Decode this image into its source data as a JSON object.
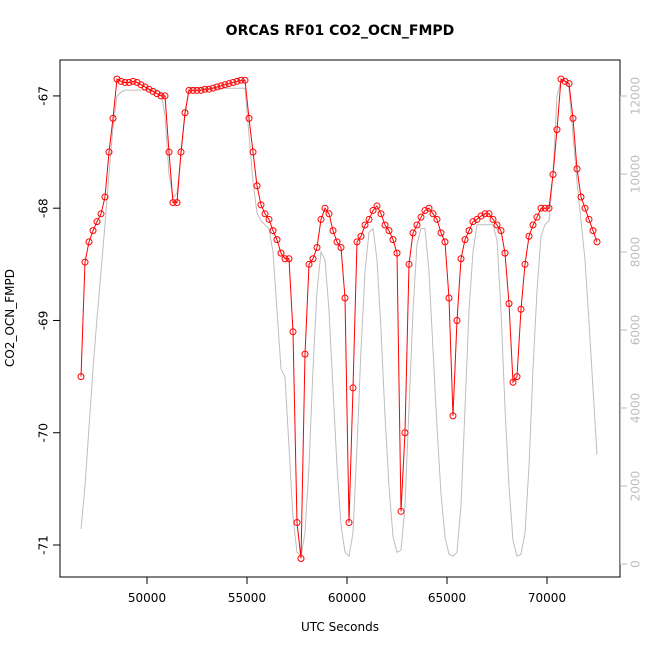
{
  "chart_data": {
    "type": "line",
    "title": "ORCAS RF01 CO2_OCN_FMPD",
    "xlabel": "UTC Seconds",
    "ylabel": "CO2_OCN_FMPD",
    "x": [
      46700,
      46900,
      47100,
      47300,
      47500,
      47700,
      47900,
      48100,
      48300,
      48500,
      48700,
      48900,
      49100,
      49300,
      49500,
      49700,
      49900,
      50100,
      50300,
      50500,
      50700,
      50900,
      51100,
      51300,
      51500,
      51700,
      51900,
      52100,
      52300,
      52500,
      52700,
      52900,
      53100,
      53300,
      53500,
      53700,
      53900,
      54100,
      54300,
      54500,
      54700,
      54900,
      55100,
      55300,
      55500,
      55700,
      55900,
      56100,
      56300,
      56500,
      56700,
      56900,
      57100,
      57300,
      57500,
      57700,
      57900,
      58100,
      58300,
      58500,
      58700,
      58900,
      59100,
      59300,
      59500,
      59700,
      59900,
      60100,
      60300,
      60500,
      60700,
      60900,
      61100,
      61300,
      61500,
      61700,
      61900,
      62100,
      62300,
      62500,
      62700,
      62900,
      63100,
      63300,
      63500,
      63700,
      63900,
      64100,
      64300,
      64500,
      64700,
      64900,
      65100,
      65300,
      65500,
      65700,
      65900,
      66100,
      66300,
      66500,
      66700,
      66900,
      67100,
      67300,
      67500,
      67700,
      67900,
      68100,
      68300,
      68500,
      68700,
      68900,
      69100,
      69300,
      69500,
      69700,
      69900,
      70100,
      70300,
      70500,
      70700,
      70900,
      71100,
      71300,
      71500,
      71700,
      71900,
      72100,
      72300,
      72500
    ],
    "series": [
      {
        "color": "#ff0000",
        "marker": "circle",
        "axis": "y",
        "values": [
          -69.5,
          -68.48,
          -68.3,
          -68.2,
          -68.12,
          -68.05,
          -67.9,
          -67.5,
          -67.2,
          -66.85,
          -66.87,
          -66.88,
          -66.88,
          -66.87,
          -66.88,
          -66.9,
          -66.92,
          -66.94,
          -66.96,
          -66.98,
          -67.0,
          -67.0,
          -67.5,
          -67.95,
          -67.95,
          -67.5,
          -67.15,
          -66.95,
          -66.95,
          -66.95,
          -66.95,
          -66.94,
          -66.94,
          -66.93,
          -66.92,
          -66.91,
          -66.9,
          -66.89,
          -66.88,
          -66.87,
          -66.86,
          -66.86,
          -67.2,
          -67.5,
          -67.8,
          -67.97,
          -68.05,
          -68.1,
          -68.2,
          -68.28,
          -68.4,
          -68.45,
          -68.45,
          -69.1,
          -70.8,
          -71.12,
          -69.3,
          -68.5,
          -68.45,
          -68.35,
          -68.1,
          -68.0,
          -68.05,
          -68.2,
          -68.3,
          -68.35,
          -68.8,
          -70.8,
          -69.6,
          -68.3,
          -68.25,
          -68.15,
          -68.1,
          -68.02,
          -67.98,
          -68.05,
          -68.15,
          -68.2,
          -68.28,
          -68.4,
          -70.7,
          -70.0,
          -68.5,
          -68.22,
          -68.15,
          -68.08,
          -68.02,
          -68.0,
          -68.05,
          -68.1,
          -68.22,
          -68.3,
          -68.8,
          -69.85,
          -69.0,
          -68.45,
          -68.28,
          -68.2,
          -68.12,
          -68.1,
          -68.07,
          -68.05,
          -68.05,
          -68.1,
          -68.15,
          -68.2,
          -68.4,
          -68.85,
          -69.55,
          -69.5,
          -68.9,
          -68.5,
          -68.25,
          -68.15,
          -68.08,
          -68.0,
          -68.0,
          -68.0,
          -67.7,
          -67.3,
          -66.85,
          -66.87,
          -66.89,
          -67.2,
          -67.65,
          -67.9,
          -68.0,
          -68.1,
          -68.2,
          -68.3
        ]
      },
      {
        "color": "#bebebe",
        "axis": "y2",
        "values": [
          900,
          2000,
          3500,
          5000,
          6300,
          7500,
          8700,
          10000,
          11200,
          12000,
          12100,
          12150,
          12150,
          12150,
          12150,
          12150,
          12150,
          12150,
          12150,
          12150,
          12100,
          11500,
          10000,
          9400,
          9500,
          10500,
          11500,
          12200,
          12200,
          12200,
          12200,
          12200,
          12200,
          12200,
          12200,
          12200,
          12200,
          12200,
          12200,
          12200,
          12200,
          12200,
          11000,
          9800,
          9000,
          8800,
          8700,
          8600,
          8000,
          6500,
          5000,
          4800,
          3000,
          1200,
          300,
          200,
          800,
          2500,
          5000,
          7000,
          8000,
          7800,
          6500,
          4500,
          2500,
          1000,
          300,
          200,
          800,
          3000,
          5500,
          7500,
          8500,
          8600,
          7800,
          6000,
          3800,
          2000,
          700,
          300,
          350,
          1500,
          4000,
          6500,
          8200,
          8600,
          8600,
          7500,
          5500,
          3500,
          1800,
          700,
          250,
          200,
          300,
          1500,
          4000,
          6500,
          8000,
          8700,
          8700,
          8700,
          8700,
          8700,
          8300,
          6500,
          4000,
          2000,
          600,
          200,
          250,
          800,
          2500,
          5000,
          7000,
          8400,
          8700,
          8800,
          10000,
          12000,
          12400,
          12400,
          12200,
          11000,
          9800,
          8800,
          7800,
          6200,
          4500,
          2800
        ]
      }
    ],
    "xlim": [
      45650,
      73650
    ],
    "xticks": [
      50000,
      55000,
      60000,
      65000,
      70000
    ],
    "ylim": [
      -71.285,
      -66.68
    ],
    "yticks": [
      -71,
      -70,
      -69,
      -68,
      -67
    ],
    "y2lim": [
      -333,
      12923
    ],
    "y2ticks": [
      0,
      2000,
      4000,
      6000,
      8000,
      10000,
      12000
    ],
    "y2color": "#bebebe"
  }
}
